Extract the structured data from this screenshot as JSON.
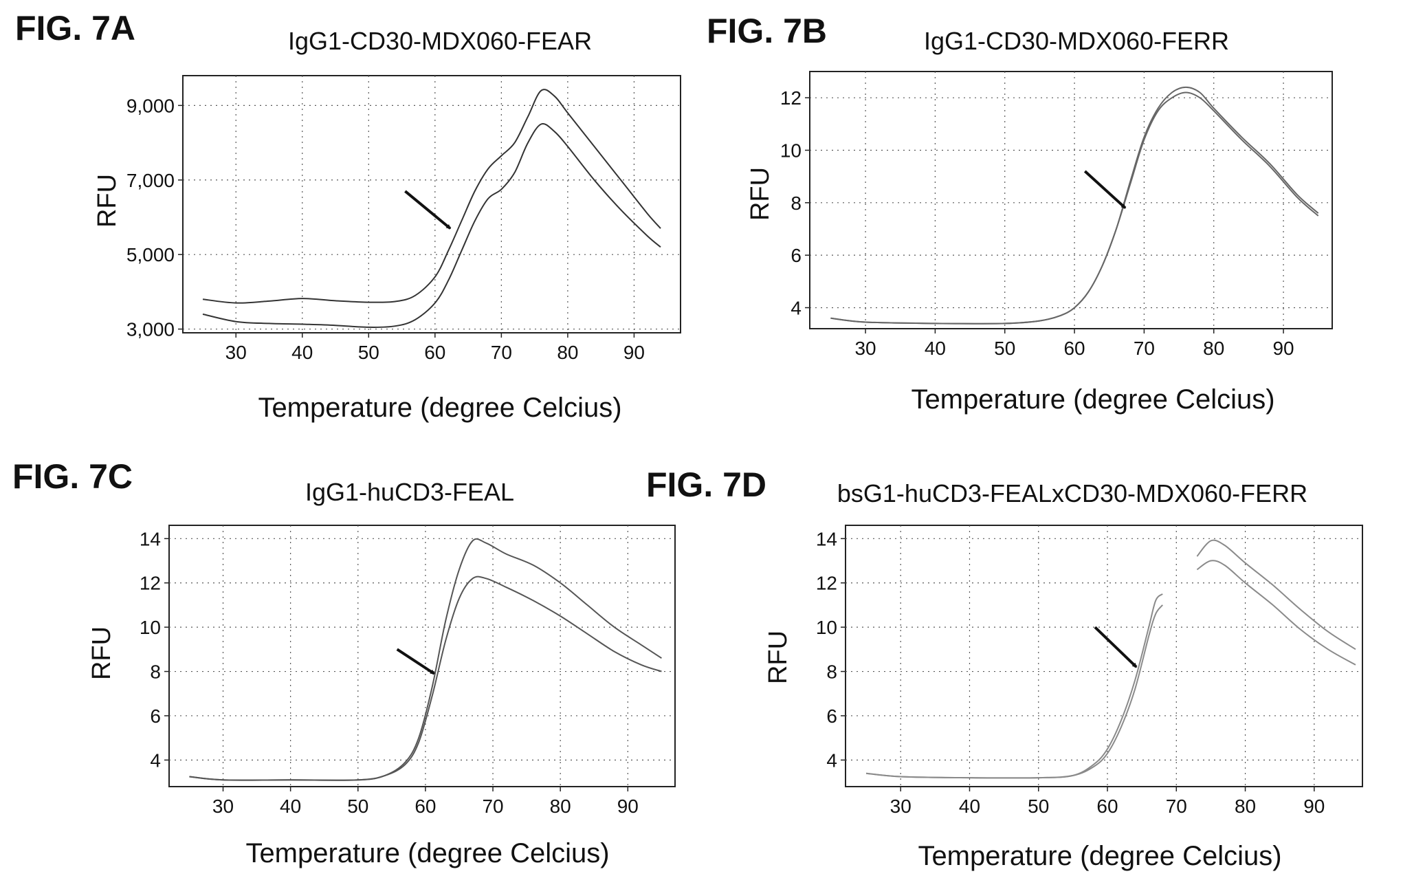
{
  "chart_data": [
    {
      "type": "line",
      "figure_label": "FIG. 7A",
      "title": "IgG1-CD30-MDX060-FEAR",
      "xlabel": "Temperature (degree Celcius)",
      "ylabel": "RFU",
      "xlim": [
        22,
        97
      ],
      "ylim": [
        2900,
        9800
      ],
      "xticks": [
        30,
        40,
        50,
        60,
        70,
        80,
        90
      ],
      "yticks": [
        3000,
        5000,
        7000,
        9000
      ],
      "ytick_labels": [
        "3,000",
        "5,000",
        "7,000",
        "9,000"
      ],
      "grid": true,
      "curve_color": "#333333",
      "series": [
        {
          "points": [
            [
              25,
              3800
            ],
            [
              30,
              3700
            ],
            [
              35,
              3750
            ],
            [
              40,
              3820
            ],
            [
              45,
              3760
            ],
            [
              50,
              3720
            ],
            [
              54,
              3740
            ],
            [
              57,
              3900
            ],
            [
              60,
              4400
            ],
            [
              62,
              5100
            ],
            [
              64,
              5900
            ],
            [
              66,
              6700
            ],
            [
              68,
              7300
            ],
            [
              70,
              7650
            ],
            [
              72,
              8000
            ],
            [
              74,
              8700
            ],
            [
              76,
              9400
            ],
            [
              78,
              9250
            ],
            [
              80,
              8800
            ],
            [
              84,
              7900
            ],
            [
              88,
              7000
            ],
            [
              92,
              6100
            ],
            [
              94,
              5700
            ]
          ]
        },
        {
          "points": [
            [
              25,
              3400
            ],
            [
              30,
              3200
            ],
            [
              35,
              3150
            ],
            [
              40,
              3130
            ],
            [
              45,
              3100
            ],
            [
              50,
              3050
            ],
            [
              54,
              3080
            ],
            [
              57,
              3250
            ],
            [
              60,
              3700
            ],
            [
              62,
              4300
            ],
            [
              64,
              5100
            ],
            [
              66,
              5900
            ],
            [
              68,
              6500
            ],
            [
              70,
              6750
            ],
            [
              72,
              7200
            ],
            [
              74,
              8000
            ],
            [
              76,
              8500
            ],
            [
              78,
              8300
            ],
            [
              80,
              7900
            ],
            [
              84,
              7000
            ],
            [
              88,
              6200
            ],
            [
              92,
              5500
            ],
            [
              94,
              5200
            ]
          ]
        }
      ],
      "arrow": {
        "from": [
          55.5,
          6700
        ],
        "to": [
          62.3,
          5700
        ]
      }
    },
    {
      "type": "line",
      "figure_label": "FIG. 7B",
      "title": "IgG1-CD30-MDX060-FERR",
      "xlabel": "Temperature (degree Celcius)",
      "ylabel": "RFU",
      "xlim": [
        22,
        97
      ],
      "ylim": [
        3.2,
        13.0
      ],
      "xticks": [
        30,
        40,
        50,
        60,
        70,
        80,
        90
      ],
      "yticks": [
        4,
        6,
        8,
        10,
        12
      ],
      "ytick_labels": [
        "4",
        "6",
        "8",
        "10",
        "12"
      ],
      "grid": true,
      "curve_color": "#666666",
      "series": [
        {
          "points": [
            [
              25,
              3.6
            ],
            [
              30,
              3.45
            ],
            [
              40,
              3.4
            ],
            [
              50,
              3.4
            ],
            [
              55,
              3.5
            ],
            [
              58,
              3.7
            ],
            [
              60,
              4.0
            ],
            [
              62,
              4.6
            ],
            [
              64,
              5.6
            ],
            [
              66,
              7.0
            ],
            [
              68,
              8.8
            ],
            [
              70,
              10.5
            ],
            [
              72,
              11.6
            ],
            [
              74,
              12.2
            ],
            [
              76,
              12.4
            ],
            [
              78,
              12.2
            ],
            [
              80,
              11.6
            ],
            [
              84,
              10.5
            ],
            [
              88,
              9.5
            ],
            [
              92,
              8.3
            ],
            [
              95,
              7.6
            ]
          ]
        },
        {
          "points": [
            [
              25,
              3.6
            ],
            [
              30,
              3.45
            ],
            [
              40,
              3.4
            ],
            [
              50,
              3.4
            ],
            [
              55,
              3.5
            ],
            [
              58,
              3.7
            ],
            [
              60,
              4.0
            ],
            [
              62,
              4.6
            ],
            [
              64,
              5.6
            ],
            [
              66,
              7.0
            ],
            [
              68,
              8.7
            ],
            [
              70,
              10.4
            ],
            [
              72,
              11.5
            ],
            [
              74,
              12.0
            ],
            [
              76,
              12.2
            ],
            [
              78,
              12.0
            ],
            [
              80,
              11.5
            ],
            [
              84,
              10.4
            ],
            [
              88,
              9.4
            ],
            [
              92,
              8.2
            ],
            [
              95,
              7.5
            ]
          ]
        }
      ],
      "arrow": {
        "from": [
          61.5,
          9.2
        ],
        "to": [
          67.3,
          7.8
        ]
      }
    },
    {
      "type": "line",
      "figure_label": "FIG. 7C",
      "title": "IgG1-huCD3-FEAL",
      "xlabel": "Temperature (degree Celcius)",
      "ylabel": "RFU",
      "xlim": [
        22,
        97
      ],
      "ylim": [
        2.8,
        14.6
      ],
      "xticks": [
        30,
        40,
        50,
        60,
        70,
        80,
        90
      ],
      "yticks": [
        4,
        6,
        8,
        10,
        12,
        14
      ],
      "ytick_labels": [
        "4",
        "6",
        "8",
        "10",
        "12",
        "14"
      ],
      "grid": true,
      "curve_color": "#555555",
      "series": [
        {
          "points": [
            [
              25,
              3.25
            ],
            [
              30,
              3.1
            ],
            [
              40,
              3.1
            ],
            [
              50,
              3.1
            ],
            [
              54,
              3.3
            ],
            [
              57,
              3.9
            ],
            [
              59,
              5.0
            ],
            [
              61,
              7.3
            ],
            [
              63,
              10.3
            ],
            [
              65,
              12.6
            ],
            [
              67,
              13.9
            ],
            [
              69,
              13.8
            ],
            [
              72,
              13.3
            ],
            [
              76,
              12.8
            ],
            [
              80,
              12.0
            ],
            [
              84,
              11.0
            ],
            [
              88,
              10.0
            ],
            [
              92,
              9.2
            ],
            [
              95,
              8.6
            ]
          ]
        },
        {
          "points": [
            [
              25,
              3.25
            ],
            [
              30,
              3.1
            ],
            [
              40,
              3.1
            ],
            [
              50,
              3.1
            ],
            [
              54,
              3.3
            ],
            [
              57,
              3.8
            ],
            [
              59,
              4.8
            ],
            [
              61,
              6.9
            ],
            [
              63,
              9.4
            ],
            [
              65,
              11.3
            ],
            [
              67,
              12.2
            ],
            [
              69,
              12.2
            ],
            [
              72,
              11.8
            ],
            [
              76,
              11.2
            ],
            [
              80,
              10.5
            ],
            [
              84,
              9.7
            ],
            [
              88,
              8.9
            ],
            [
              92,
              8.3
            ],
            [
              95,
              8.0
            ]
          ]
        }
      ],
      "arrow": {
        "from": [
          55.8,
          9.0
        ],
        "to": [
          61.3,
          7.9
        ]
      }
    },
    {
      "type": "line",
      "figure_label": "FIG. 7D",
      "title": "bsG1-huCD3-FEALxCD30-MDX060-FERR",
      "xlabel": "Temperature (degree Celcius)",
      "ylabel": "RFU",
      "xlim": [
        22,
        97
      ],
      "ylim": [
        2.8,
        14.6
      ],
      "xticks": [
        30,
        40,
        50,
        60,
        70,
        80,
        90
      ],
      "yticks": [
        4,
        6,
        8,
        10,
        12,
        14
      ],
      "ytick_labels": [
        "4",
        "6",
        "8",
        "10",
        "12",
        "14"
      ],
      "grid": true,
      "curve_color": "#8a8a8a",
      "series": [
        {
          "points": [
            [
              25,
              3.4
            ],
            [
              30,
              3.25
            ],
            [
              40,
              3.2
            ],
            [
              50,
              3.2
            ],
            [
              55,
              3.3
            ],
            [
              58,
              3.8
            ],
            [
              60,
              4.5
            ],
            [
              62,
              5.8
            ],
            [
              64,
              7.6
            ],
            [
              66,
              10.0
            ],
            [
              67,
              11.2
            ],
            [
              68,
              11.5
            ]
          ]
        },
        {
          "points": [
            [
              25,
              3.4
            ],
            [
              30,
              3.25
            ],
            [
              40,
              3.2
            ],
            [
              50,
              3.2
            ],
            [
              55,
              3.3
            ],
            [
              58,
              3.7
            ],
            [
              60,
              4.3
            ],
            [
              62,
              5.5
            ],
            [
              64,
              7.2
            ],
            [
              66,
              9.6
            ],
            [
              67,
              10.6
            ],
            [
              68,
              11.0
            ]
          ]
        },
        {
          "points": [
            [
              73,
              13.2
            ],
            [
              75,
              13.9
            ],
            [
              77,
              13.7
            ],
            [
              80,
              12.9
            ],
            [
              84,
              11.9
            ],
            [
              88,
              10.8
            ],
            [
              92,
              9.8
            ],
            [
              96,
              9.0
            ]
          ]
        },
        {
          "points": [
            [
              73,
              12.6
            ],
            [
              75,
              13.0
            ],
            [
              77,
              12.8
            ],
            [
              80,
              12.0
            ],
            [
              84,
              11.0
            ],
            [
              88,
              9.9
            ],
            [
              92,
              9.0
            ],
            [
              96,
              8.3
            ]
          ]
        }
      ],
      "arrow": {
        "from": [
          58.2,
          10.0
        ],
        "to": [
          64.2,
          8.2
        ]
      }
    }
  ]
}
